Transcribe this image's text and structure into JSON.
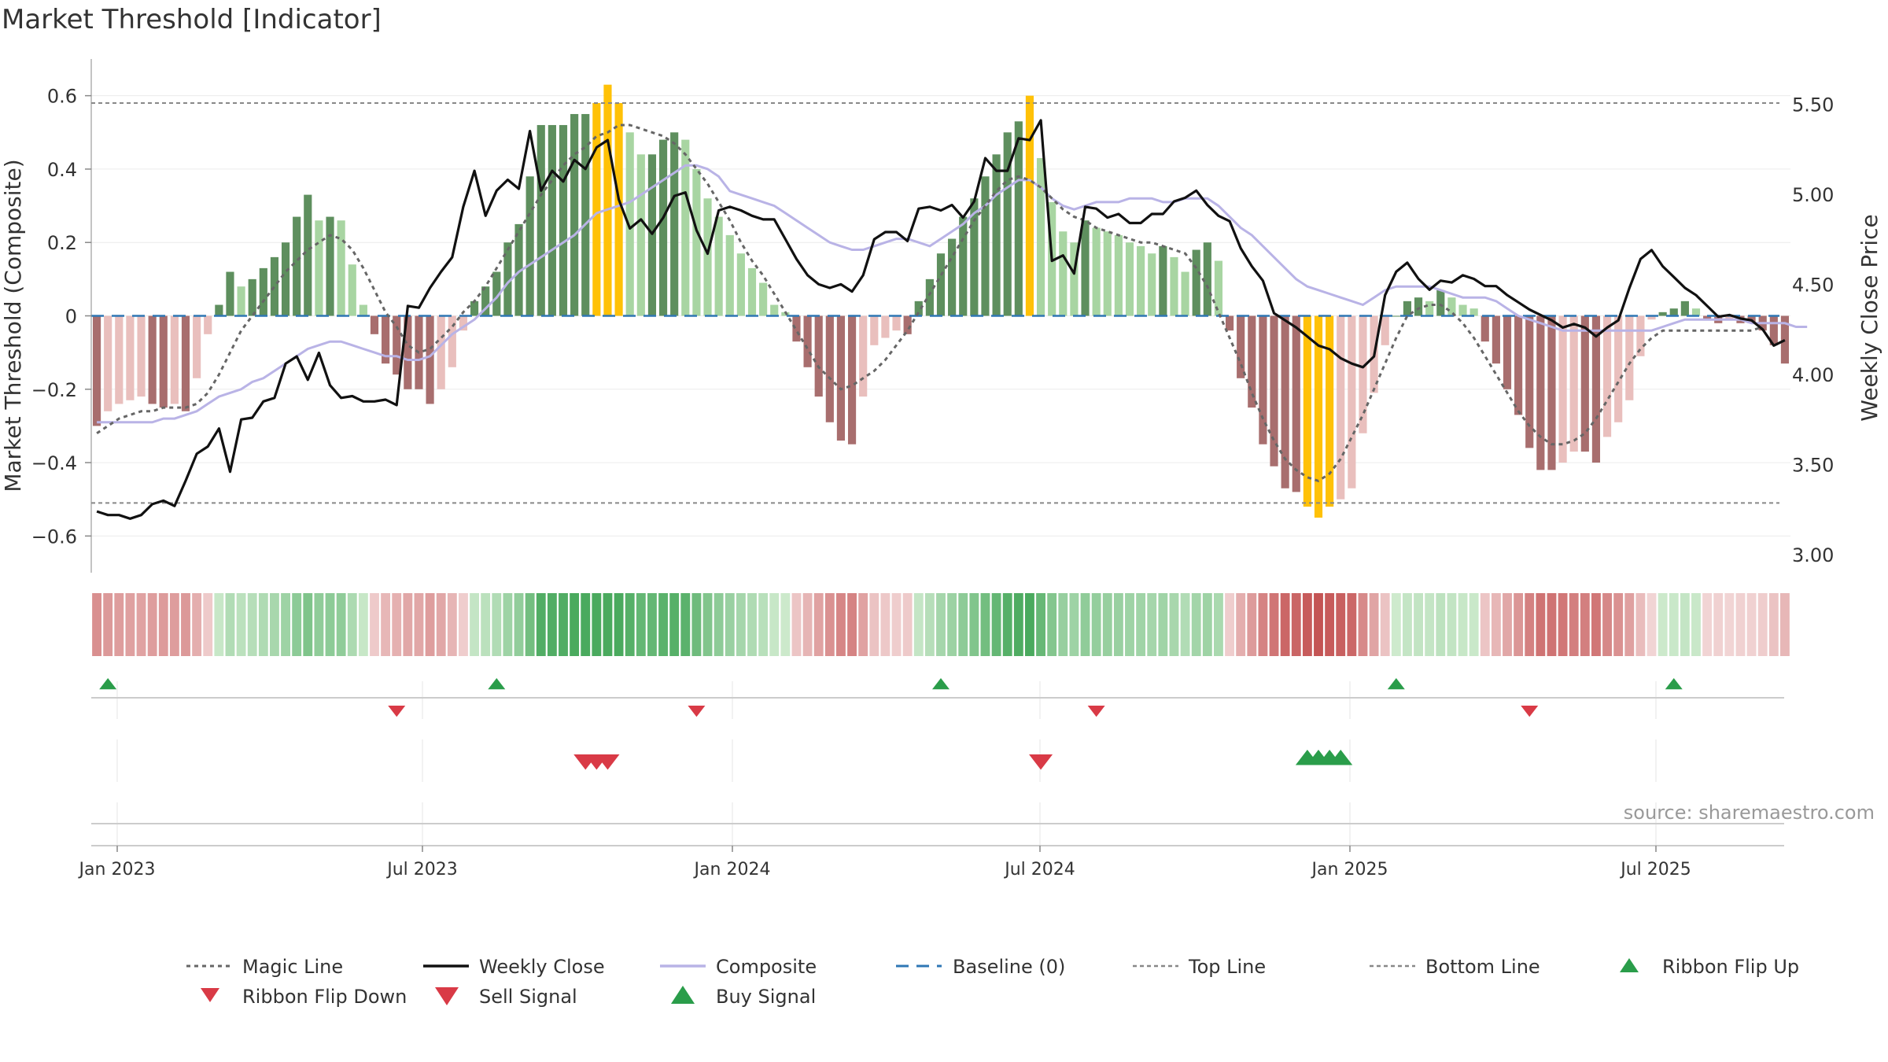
{
  "title": "Market Threshold [Indicator]",
  "source": "source: sharemaestro.com",
  "chart_data": {
    "type": "bar",
    "ylabel_left": "Market Threshold (Composite)",
    "ylabel_right": "Weekly Close Price",
    "ylim_left": [
      -0.7,
      0.7
    ],
    "ylim_right": [
      2.9,
      5.75
    ],
    "yticks_left": [
      -0.6,
      -0.4,
      -0.2,
      0,
      0.2,
      0.4,
      0.6
    ],
    "yticks_left_labels": [
      "−0.6",
      "−0.4",
      "−0.2",
      "0",
      "0.2",
      "0.4",
      "0.6"
    ],
    "yticks_right": [
      3.0,
      3.5,
      4.0,
      4.5,
      5.0,
      5.5
    ],
    "yticks_right_labels": [
      "3.00",
      "3.50",
      "4.00",
      "4.50",
      "5.00",
      "5.50"
    ],
    "xticks": [
      "Jan 2023",
      "Jul 2023",
      "Jan 2024",
      "Jul 2024",
      "Jan 2025",
      "Jul 2025"
    ],
    "top_line": 0.58,
    "bottom_line": -0.51,
    "baseline": 0,
    "composite_bars": [
      -0.3,
      -0.26,
      -0.24,
      -0.23,
      -0.22,
      -0.24,
      -0.25,
      -0.24,
      -0.26,
      -0.17,
      -0.05,
      0.03,
      0.12,
      0.08,
      0.1,
      0.13,
      0.16,
      0.2,
      0.27,
      0.33,
      0.26,
      0.27,
      0.26,
      0.14,
      0.03,
      -0.05,
      -0.13,
      -0.16,
      -0.2,
      -0.2,
      -0.24,
      -0.2,
      -0.14,
      -0.04,
      0.04,
      0.08,
      0.12,
      0.2,
      0.25,
      0.38,
      0.52,
      0.52,
      0.52,
      0.55,
      0.55,
      0.58,
      0.63,
      0.58,
      0.5,
      0.44,
      0.44,
      0.48,
      0.5,
      0.48,
      0.4,
      0.32,
      0.27,
      0.22,
      0.17,
      0.13,
      0.09,
      0.03,
      0.01,
      -0.07,
      -0.14,
      -0.22,
      -0.29,
      -0.34,
      -0.35,
      -0.22,
      -0.08,
      -0.06,
      -0.04,
      -0.05,
      0.04,
      0.1,
      0.17,
      0.21,
      0.27,
      0.32,
      0.38,
      0.44,
      0.5,
      0.53,
      0.6,
      0.43,
      0.31,
      0.23,
      0.2,
      0.26,
      0.24,
      0.23,
      0.22,
      0.2,
      0.19,
      0.17,
      0.19,
      0.16,
      0.12,
      0.18,
      0.2,
      0.15,
      -0.04,
      -0.17,
      -0.25,
      -0.35,
      -0.41,
      -0.47,
      -0.48,
      -0.52,
      -0.55,
      -0.52,
      -0.5,
      -0.47,
      -0.32,
      -0.21,
      -0.08,
      0,
      0.04,
      0.05,
      0.04,
      0.07,
      0.05,
      0.03,
      0.02,
      -0.07,
      -0.13,
      -0.2,
      -0.27,
      -0.36,
      -0.42,
      -0.42,
      -0.4,
      -0.37,
      -0.37,
      -0.4,
      -0.33,
      -0.29,
      -0.23,
      -0.11,
      -0.01,
      0.01,
      0.02,
      0.04,
      0.02,
      -0.01,
      -0.02,
      -0.01,
      -0.02,
      -0.02,
      -0.04,
      -0.08,
      -0.13
    ],
    "weekly_close": [
      3.24,
      3.22,
      3.22,
      3.2,
      3.22,
      3.28,
      3.3,
      3.27,
      3.41,
      3.56,
      3.6,
      3.7,
      3.46,
      3.75,
      3.76,
      3.85,
      3.87,
      4.06,
      4.1,
      3.97,
      4.12,
      3.94,
      3.87,
      3.88,
      3.85,
      3.85,
      3.86,
      3.83,
      4.38,
      4.37,
      4.48,
      4.57,
      4.65,
      4.93,
      5.13,
      4.88,
      5.02,
      5.08,
      5.03,
      5.35,
      5.02,
      5.13,
      5.07,
      5.19,
      5.14,
      5.26,
      5.3,
      4.97,
      4.81,
      4.86,
      4.78,
      4.87,
      4.99,
      5.01,
      4.8,
      4.67,
      4.91,
      4.93,
      4.91,
      4.88,
      4.86,
      4.86,
      4.75,
      4.64,
      4.55,
      4.5,
      4.48,
      4.5,
      4.46,
      4.55,
      4.75,
      4.79,
      4.79,
      4.74,
      4.92,
      4.93,
      4.91,
      4.94,
      4.87,
      4.96,
      5.2,
      5.13,
      5.13,
      5.31,
      5.3,
      5.41,
      4.63,
      4.66,
      4.56,
      4.93,
      4.92,
      4.87,
      4.89,
      4.84,
      4.84,
      4.89,
      4.89,
      4.96,
      4.98,
      5.02,
      4.94,
      4.88,
      4.85,
      4.7,
      4.6,
      4.52,
      4.34,
      4.3,
      4.26,
      4.21,
      4.16,
      4.14,
      4.09,
      4.06,
      4.04,
      4.1,
      4.44,
      4.57,
      4.62,
      4.53,
      4.47,
      4.52,
      4.51,
      4.55,
      4.53,
      4.49,
      4.49,
      4.44,
      4.4,
      4.36,
      4.33,
      4.3,
      4.26,
      4.28,
      4.26,
      4.21,
      4.26,
      4.3,
      4.48,
      4.64,
      4.69,
      4.6,
      4.54,
      4.48,
      4.44,
      4.38,
      4.32,
      4.33,
      4.31,
      4.3,
      4.25,
      4.16,
      4.19
    ],
    "composite_line": [
      -0.29,
      -0.29,
      -0.29,
      -0.29,
      -0.29,
      -0.29,
      -0.28,
      -0.28,
      -0.27,
      -0.26,
      -0.24,
      -0.22,
      -0.21,
      -0.2,
      -0.18,
      -0.17,
      -0.15,
      -0.13,
      -0.11,
      -0.09,
      -0.08,
      -0.07,
      -0.07,
      -0.08,
      -0.09,
      -0.1,
      -0.11,
      -0.11,
      -0.12,
      -0.12,
      -0.11,
      -0.08,
      -0.05,
      -0.03,
      -0.01,
      0.02,
      0.05,
      0.09,
      0.12,
      0.14,
      0.16,
      0.18,
      0.2,
      0.22,
      0.25,
      0.28,
      0.29,
      0.3,
      0.31,
      0.33,
      0.35,
      0.37,
      0.39,
      0.41,
      0.41,
      0.4,
      0.38,
      0.34,
      0.33,
      0.32,
      0.31,
      0.3,
      0.28,
      0.26,
      0.24,
      0.22,
      0.2,
      0.19,
      0.18,
      0.18,
      0.19,
      0.2,
      0.21,
      0.21,
      0.2,
      0.19,
      0.21,
      0.23,
      0.25,
      0.28,
      0.3,
      0.33,
      0.35,
      0.37,
      0.37,
      0.35,
      0.32,
      0.3,
      0.29,
      0.3,
      0.31,
      0.31,
      0.31,
      0.32,
      0.32,
      0.32,
      0.31,
      0.31,
      0.32,
      0.32,
      0.32,
      0.3,
      0.27,
      0.24,
      0.22,
      0.19,
      0.16,
      0.13,
      0.1,
      0.08,
      0.07,
      0.06,
      0.05,
      0.04,
      0.03,
      0.05,
      0.07,
      0.08,
      0.08,
      0.08,
      0.08,
      0.07,
      0.06,
      0.05,
      0.05,
      0.05,
      0.04,
      0.02,
      0.0,
      -0.01,
      -0.02,
      -0.03,
      -0.04,
      -0.04,
      -0.04,
      -0.04,
      -0.04,
      -0.04,
      -0.04,
      -0.04,
      -0.04,
      -0.03,
      -0.02,
      -0.01,
      -0.01,
      -0.01,
      -0.01,
      -0.01,
      -0.01,
      -0.02,
      -0.02,
      -0.02,
      -0.02,
      -0.03,
      -0.03
    ],
    "magic_line": [
      -0.32,
      -0.3,
      -0.28,
      -0.27,
      -0.26,
      -0.26,
      -0.25,
      -0.25,
      -0.25,
      -0.24,
      -0.21,
      -0.16,
      -0.1,
      -0.04,
      0.0,
      0.04,
      0.08,
      0.12,
      0.15,
      0.18,
      0.2,
      0.22,
      0.21,
      0.18,
      0.13,
      0.07,
      0.01,
      -0.03,
      -0.08,
      -0.1,
      -0.09,
      -0.06,
      -0.03,
      0.01,
      0.04,
      0.08,
      0.13,
      0.18,
      0.23,
      0.28,
      0.33,
      0.37,
      0.41,
      0.44,
      0.46,
      0.49,
      0.5,
      0.52,
      0.52,
      0.51,
      0.5,
      0.49,
      0.47,
      0.44,
      0.4,
      0.36,
      0.31,
      0.26,
      0.2,
      0.15,
      0.11,
      0.06,
      0.01,
      -0.04,
      -0.09,
      -0.14,
      -0.17,
      -0.2,
      -0.19,
      -0.17,
      -0.15,
      -0.12,
      -0.08,
      -0.04,
      0.01,
      0.06,
      0.11,
      0.16,
      0.21,
      0.26,
      0.3,
      0.34,
      0.37,
      0.38,
      0.37,
      0.35,
      0.32,
      0.29,
      0.27,
      0.26,
      0.24,
      0.23,
      0.22,
      0.21,
      0.2,
      0.2,
      0.19,
      0.18,
      0.17,
      0.13,
      0.08,
      0.01,
      -0.06,
      -0.13,
      -0.21,
      -0.28,
      -0.34,
      -0.39,
      -0.42,
      -0.44,
      -0.45,
      -0.43,
      -0.39,
      -0.33,
      -0.27,
      -0.2,
      -0.13,
      -0.06,
      0.0,
      0.02,
      0.03,
      0.03,
      0.01,
      -0.02,
      -0.06,
      -0.11,
      -0.16,
      -0.21,
      -0.26,
      -0.3,
      -0.33,
      -0.35,
      -0.35,
      -0.34,
      -0.32,
      -0.28,
      -0.23,
      -0.18,
      -0.13,
      -0.09,
      -0.06,
      -0.04,
      -0.04,
      -0.04,
      -0.04,
      -0.04,
      -0.04,
      -0.04,
      -0.04,
      -0.04,
      -0.03
    ],
    "ribbon_flip_up_weeks": [
      1,
      36,
      76,
      117,
      142
    ],
    "ribbon_flip_down_weeks": [
      27,
      54,
      90,
      129
    ],
    "sell_signal_weeks": [
      44,
      45,
      46,
      85
    ],
    "buy_signal_weeks": [
      109,
      110,
      111,
      112
    ],
    "legend": [
      "Magic Line",
      "Weekly Close",
      "Composite",
      "Baseline (0)",
      "Top Line",
      "Bottom Line",
      "Ribbon Flip Up",
      "Ribbon Flip Down",
      "Sell Signal",
      "Buy Signal"
    ],
    "colors": {
      "strong_pos": "#5e8f5e",
      "weak_pos": "#a8d5a2",
      "strong_neg": "#a86e6e",
      "weak_neg": "#e9bfbd",
      "extreme": "#ffc107",
      "close": "#111111",
      "composite": "#b9b3e6",
      "magic": "#666666",
      "baseline": "#2f77b4",
      "up": "#2a9d4a",
      "down": "#d93a46"
    }
  },
  "legend_labels": {
    "magic": "Magic Line",
    "close": "Weekly Close",
    "composite": "Composite",
    "baseline": "Baseline (0)",
    "top": "Top Line",
    "bottom": "Bottom Line",
    "flip_up": "Ribbon Flip Up",
    "flip_down": "Ribbon Flip Down",
    "sell": "Sell Signal",
    "buy": "Buy Signal"
  }
}
